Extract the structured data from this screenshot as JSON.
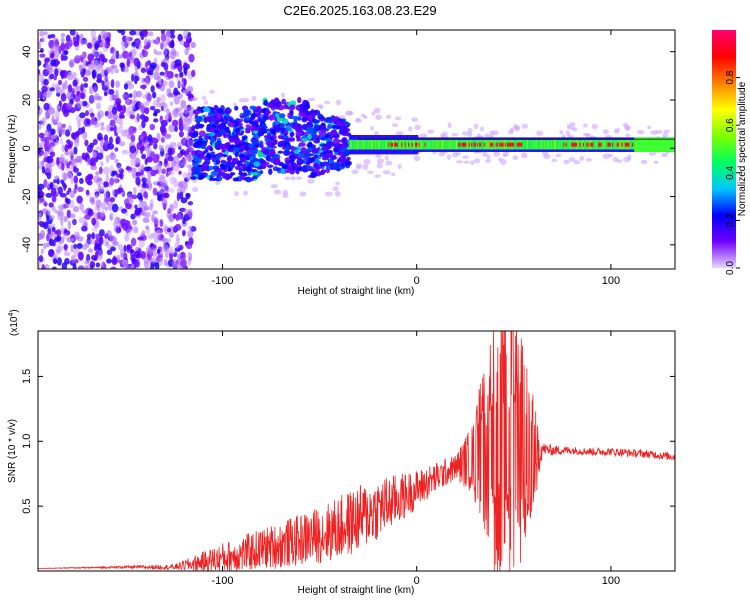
{
  "title": "C2E6.2025.163.08.23.E29",
  "chart_data": [
    {
      "type": "heatmap",
      "xlabel": "Height of straight line (km)",
      "ylabel": "Frequency (Hz)",
      "xlim": [
        -195,
        133
      ],
      "ylim": [
        -50,
        49
      ],
      "xticks": [
        -100,
        0,
        100
      ],
      "xtick_labels": [
        "-100",
        "0",
        "100"
      ],
      "yticks": [
        -40,
        -20,
        0,
        20,
        40
      ],
      "ytick_labels": [
        "-40",
        "-20",
        "0",
        "20",
        "40"
      ],
      "colorbar": {
        "label": "Normalized spectral amplitude",
        "range": [
          0,
          1
        ],
        "ticks": [
          0,
          0.2,
          0.4,
          0.6,
          0.8
        ],
        "tick_labels": [
          "0.0",
          "0.2",
          "0.4",
          "0.6",
          "0.8"
        ],
        "colormap": [
          "#e9d6ff",
          "#7000ff",
          "#0000ff",
          "#00c8ff",
          "#00ff60",
          "#80ff00",
          "#ffff00",
          "#ff8000",
          "#ff0000",
          "#ff0070"
        ]
      },
      "regions": [
        {
          "x_range": [
            -195,
            -115
          ],
          "freq_range": [
            -50,
            49
          ],
          "amplitude": 0.1,
          "description_level": "diffuse"
        },
        {
          "x_range": [
            -115,
            -35
          ],
          "freq_range": [
            -15,
            18
          ],
          "amplitude": 0.3
        },
        {
          "x_range": [
            -35,
            133
          ],
          "freq_center": 1.5,
          "amplitude": 0.95
        }
      ],
      "grid": false
    },
    {
      "type": "line",
      "xlabel": "Height of straight line (km)",
      "ylabel": "SNR (10 * v/v)",
      "y_multiplier": "(x10",
      "y_multiplier_exp": "4",
      "xlim": [
        -195,
        133
      ],
      "ylim": [
        0,
        1.85
      ],
      "xticks": [
        -100,
        0,
        100
      ],
      "xtick_labels": [
        "-100",
        "0",
        "100"
      ],
      "yticks": [
        0.5,
        1.0,
        1.5
      ],
      "ytick_labels": [
        "0.5",
        "1.0",
        "1.5"
      ],
      "line_color": "#ee2222",
      "series": [
        {
          "x": [
            -195,
            -150,
            -125,
            -110,
            -100,
            -90,
            -80,
            -70,
            -60,
            -50,
            -40,
            -30,
            -20,
            -10,
            0,
            10,
            20,
            30,
            35,
            40,
            45,
            50,
            55,
            60,
            65,
            70,
            80,
            90,
            100,
            110,
            120,
            133
          ],
          "values": [
            0.02,
            0.03,
            0.03,
            0.07,
            0.1,
            0.13,
            0.17,
            0.2,
            0.24,
            0.28,
            0.33,
            0.4,
            0.48,
            0.55,
            0.63,
            0.72,
            0.8,
            0.88,
            0.92,
            0.95,
            0.96,
            0.96,
            0.95,
            0.94,
            0.94,
            0.93,
            0.93,
            0.92,
            0.92,
            0.91,
            0.9,
            0.88
          ],
          "noise_envelope": [
            0.0,
            0.01,
            0.02,
            0.08,
            0.12,
            0.14,
            0.16,
            0.18,
            0.2,
            0.22,
            0.25,
            0.26,
            0.24,
            0.2,
            0.15,
            0.12,
            0.1,
            0.3,
            0.6,
            0.85,
            0.9,
            0.85,
            0.7,
            0.4,
            0.05,
            0.04,
            0.03,
            0.03,
            0.03,
            0.03,
            0.03,
            0.03
          ]
        }
      ],
      "peak": {
        "x": 49,
        "y": 1.85
      }
    }
  ]
}
